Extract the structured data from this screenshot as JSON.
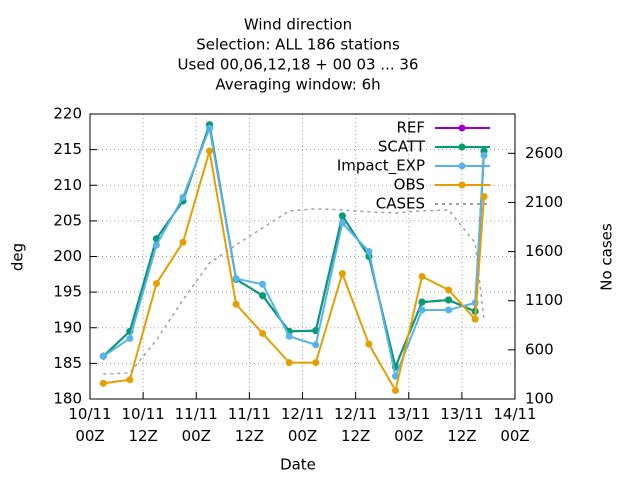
{
  "chart_data": {
    "type": "line",
    "title": [
      "Wind direction",
      "Selection: ALL    186 stations",
      "Used  00,06,12,18 + 00 03 ... 36",
      "Averaging window:  6h"
    ],
    "x_label": "Date",
    "y_label": "deg",
    "y2_label": "No cases",
    "x": [
      3,
      9,
      15,
      21,
      27,
      33,
      39,
      45,
      51,
      57,
      63,
      69,
      75,
      81,
      87,
      89
    ],
    "xlim": [
      0,
      96
    ],
    "xticks": [
      {
        "value": 0,
        "label": "10/11\n00Z"
      },
      {
        "value": 12,
        "label": "10/11\n12Z"
      },
      {
        "value": 24,
        "label": "11/11\n00Z"
      },
      {
        "value": 36,
        "label": "11/11\n12Z"
      },
      {
        "value": 48,
        "label": "12/11\n00Z"
      },
      {
        "value": 60,
        "label": "12/11\n12Z"
      },
      {
        "value": 72,
        "label": "13/11\n00Z"
      },
      {
        "value": 84,
        "label": "13/11\n12Z"
      },
      {
        "value": 96,
        "label": "14/11\n00Z"
      }
    ],
    "ylim": [
      180,
      220
    ],
    "yticks": [
      180,
      185,
      190,
      195,
      200,
      205,
      210,
      215,
      220
    ],
    "y2lim": [
      100,
      3000
    ],
    "y2ticks": [
      100,
      600,
      1100,
      1600,
      2100,
      2600
    ],
    "grid": true,
    "legend": "top-right",
    "series": [
      {
        "name": "REF",
        "color": "#9400d3",
        "values": [
          186.0,
          189.5,
          202.5,
          207.8,
          218.5,
          196.8,
          194.5,
          189.5,
          189.6,
          205.7,
          200.0,
          184.5,
          193.6,
          193.9,
          192.3,
          214.8
        ]
      },
      {
        "name": "SCATT",
        "color": "#009e73",
        "values": [
          186.0,
          189.5,
          202.5,
          207.8,
          218.5,
          196.8,
          194.5,
          189.5,
          189.6,
          205.7,
          200.0,
          184.5,
          193.6,
          193.9,
          192.3,
          214.8
        ]
      },
      {
        "name": "Impact_EXP",
        "color": "#56b4e9",
        "values": [
          186.0,
          188.5,
          201.6,
          208.3,
          218.0,
          196.9,
          196.1,
          188.8,
          187.6,
          204.7,
          200.7,
          183.2,
          192.5,
          192.5,
          193.5,
          214.2
        ]
      },
      {
        "name": "OBS",
        "color": "#e69f00",
        "values": [
          182.2,
          182.7,
          196.2,
          202.0,
          214.8,
          193.3,
          189.2,
          185.1,
          185.1,
          197.6,
          187.7,
          181.2,
          197.2,
          195.3,
          191.2,
          208.4
        ]
      },
      {
        "name": "CASES",
        "color": "#a0a0a0",
        "axis": "y2",
        "dashed": true,
        "values": [
          354,
          365,
          700,
          1108,
          1484,
          1668,
          1841,
          2014,
          2034,
          2024,
          2004,
          1993,
          2014,
          2024,
          1688,
          904
        ]
      }
    ]
  }
}
